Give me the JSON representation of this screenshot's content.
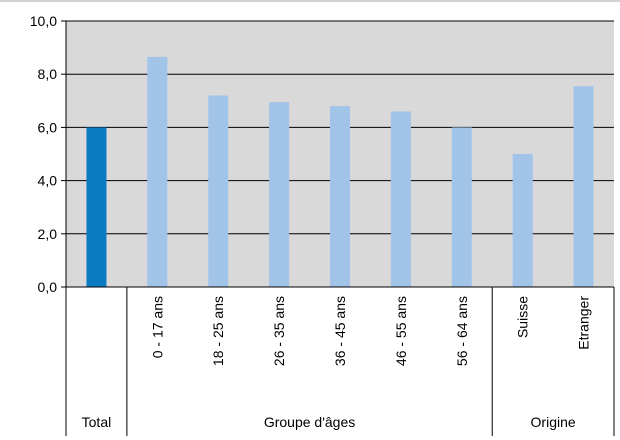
{
  "chart_data": {
    "type": "bar",
    "title": "",
    "xlabel": "",
    "ylabel": "",
    "ylim": [
      0,
      10
    ],
    "y_ticks": [
      "0,0",
      "2,0",
      "4,0",
      "6,0",
      "8,0",
      "10,0"
    ],
    "grid": true,
    "categories": [
      "",
      "0 - 17 ans",
      "18 - 25 ans",
      "26 - 35 ans",
      "36 - 45 ans",
      "46 - 55 ans",
      "56 - 64 ans",
      "Suisse",
      "Etranger"
    ],
    "values": [
      6.0,
      8.65,
      7.2,
      6.95,
      6.8,
      6.6,
      6.0,
      5.0,
      7.55
    ],
    "highlight_index": 0,
    "groups": [
      {
        "label": "Total",
        "count": 1
      },
      {
        "label": "Groupe d'âges",
        "count": 6
      },
      {
        "label": "Origine",
        "count": 2
      }
    ],
    "colors": {
      "plot_background": "#d9d9d9",
      "bar": "#a3c4e9",
      "bar_highlight": "#0a7bc2",
      "grid": "#000000",
      "axis": "#000000",
      "top_border": "#a6a6a6"
    }
  }
}
